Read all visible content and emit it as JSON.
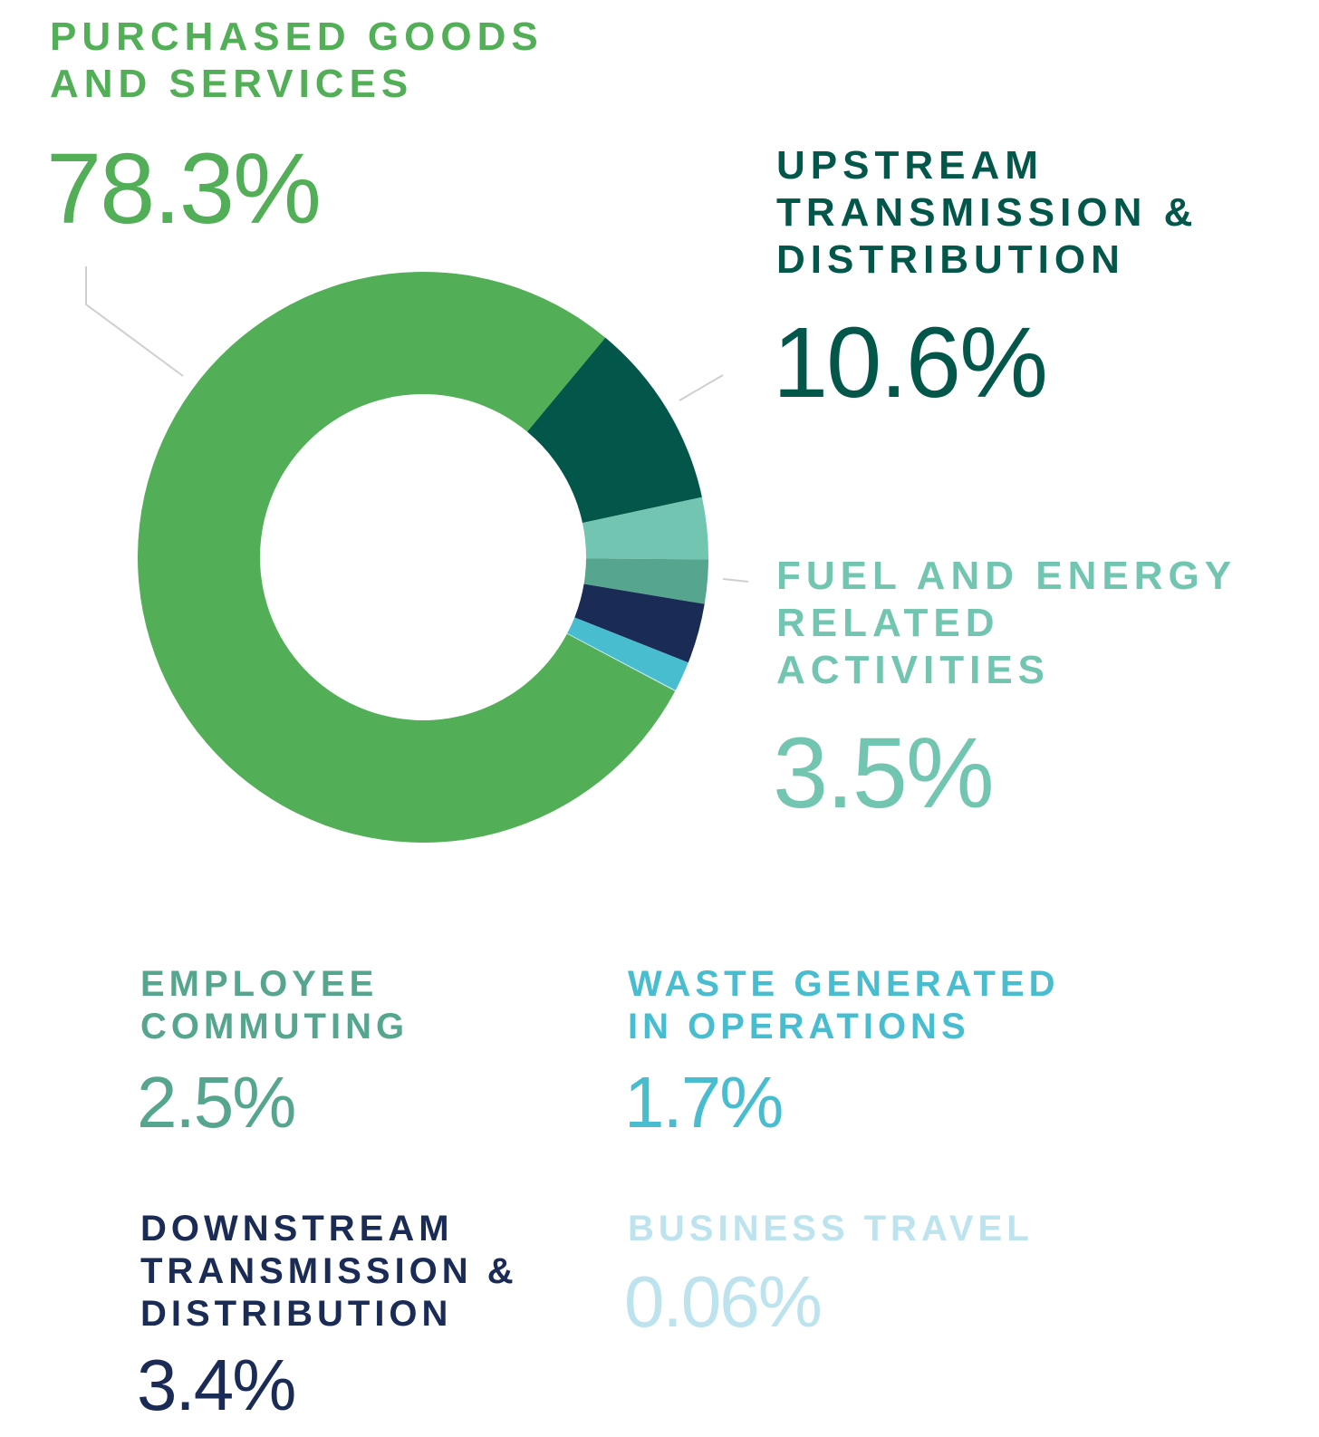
{
  "chart_data": {
    "type": "pie",
    "categories": [
      "PURCHASED GOODS AND SERVICES",
      "UPSTREAM TRANSMISSION & DISTRIBUTION",
      "FUEL AND ENERGY RELATED ACTIVITIES",
      "EMPLOYEE COMMUTING",
      "DOWNSTREAM TRANSMISSION & DISTRIBUTION",
      "WASTE GENERATED IN OPERATIONS",
      "BUSINESS TRAVEL"
    ],
    "values": [
      78.3,
      10.6,
      3.5,
      2.5,
      3.4,
      1.7,
      0.06
    ],
    "value_labels": [
      "78.3%",
      "10.6%",
      "3.5%",
      "2.5%",
      "3.4%",
      "1.7%",
      "0.06%"
    ],
    "colors": [
      "#52ae57",
      "#02574a",
      "#72c5b0",
      "#55a58f",
      "#1a2c56",
      "#48bdd0",
      "#bde3ee"
    ]
  }
}
